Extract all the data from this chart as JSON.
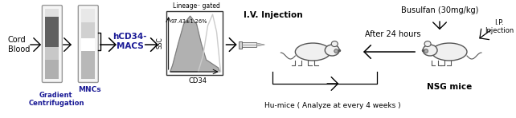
{
  "bg_color": "#ffffff",
  "fig_width": 6.42,
  "fig_height": 1.48,
  "dpi": 100,
  "labels": {
    "cord_blood": "Cord\nBlood",
    "gradient": "Gradient\nCentrifugation",
    "mncs": "MNCs",
    "hcd34": "hCD34-\nMACS",
    "lineage_gated": "Lineage⁻ gated",
    "percent": "97.43±1.26%",
    "ssc": "SSC",
    "cd34": "CD34",
    "iv_injection": "I.V. Injection",
    "busulfan": "Busulfan (30mg/kg)",
    "ip_injection": "I.P.\nInjection",
    "after24": "After 24 hours",
    "nsg_mice": "NSG mice",
    "humice": "Hu-mice ( Analyze at every 4 weeks )"
  },
  "text_color": "#000000",
  "label_color": "#1a1a96",
  "tube_outline": "#999999",
  "mouse_fill": "#f0f0f0",
  "mouse_outline": "#555555"
}
